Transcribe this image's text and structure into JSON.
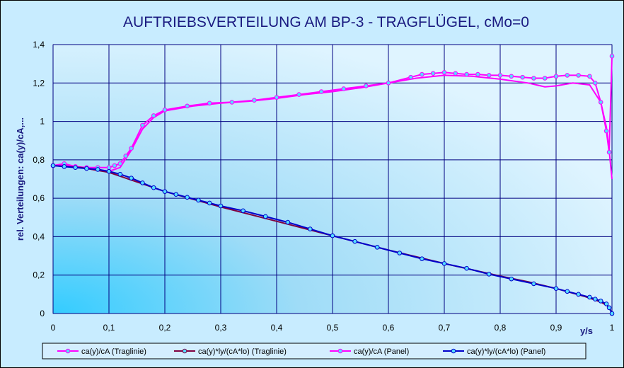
{
  "chart_data": {
    "type": "line",
    "title": "AUFTRIEBSVERTEILUNG AM BP-3 - TRAGFLÜGEL, cMo=0",
    "xlabel": "y/s",
    "ylabel": "rel. Verteilungen: ca(y)/cA,...",
    "xlim": [
      0,
      1
    ],
    "ylim": [
      0,
      1.4
    ],
    "xticks": [
      "0",
      "0,1",
      "0,2",
      "0,3",
      "0,4",
      "0,5",
      "0,6",
      "0,7",
      "0,8",
      "0,9",
      "1"
    ],
    "yticks": [
      "0",
      "0,2",
      "0,4",
      "0,6",
      "0,8",
      "1",
      "1,2",
      "1,4"
    ],
    "grid": true,
    "legend_position": "bottom",
    "series": [
      {
        "name": "ca(y)/cA (Traglinie)",
        "color": "#ff00ff",
        "marker": "none",
        "x": [
          0,
          0.02,
          0.05,
          0.08,
          0.1,
          0.12,
          0.14,
          0.16,
          0.18,
          0.2,
          0.25,
          0.3,
          0.35,
          0.4,
          0.45,
          0.5,
          0.55,
          0.6,
          0.65,
          0.7,
          0.75,
          0.8,
          0.85,
          0.88,
          0.9,
          0.93,
          0.96,
          0.98,
          0.99,
          0.995,
          1.0
        ],
        "y": [
          0.77,
          0.77,
          0.76,
          0.745,
          0.74,
          0.76,
          0.85,
          0.96,
          1.02,
          1.055,
          1.08,
          1.095,
          1.105,
          1.12,
          1.14,
          1.155,
          1.175,
          1.2,
          1.225,
          1.24,
          1.235,
          1.22,
          1.2,
          1.18,
          1.185,
          1.2,
          1.19,
          1.1,
          0.97,
          0.85,
          0.7
        ]
      },
      {
        "name": "ca(y)*ly/(cA*lo) (Traglinie)",
        "color": "#800040",
        "marker": "none",
        "x": [
          0,
          0.05,
          0.1,
          0.15,
          0.2,
          0.3,
          0.4,
          0.5,
          0.6,
          0.7,
          0.8,
          0.85,
          0.9,
          0.95,
          0.98,
          0.995,
          1.0
        ],
        "y": [
          0.77,
          0.76,
          0.735,
          0.685,
          0.635,
          0.555,
          0.48,
          0.405,
          0.33,
          0.26,
          0.195,
          0.165,
          0.13,
          0.09,
          0.06,
          0.035,
          0.0
        ]
      },
      {
        "name": "ca(y)/cA (Panel)",
        "color": "#ff00ff",
        "marker": "circle",
        "x": [
          0,
          0.02,
          0.04,
          0.06,
          0.08,
          0.1,
          0.11,
          0.12,
          0.13,
          0.14,
          0.16,
          0.18,
          0.2,
          0.24,
          0.28,
          0.32,
          0.36,
          0.4,
          0.44,
          0.48,
          0.52,
          0.56,
          0.6,
          0.64,
          0.66,
          0.68,
          0.7,
          0.72,
          0.74,
          0.76,
          0.78,
          0.8,
          0.82,
          0.84,
          0.86,
          0.88,
          0.9,
          0.92,
          0.94,
          0.96,
          0.97,
          0.98,
          0.99,
          0.995,
          1.0
        ],
        "y": [
          0.77,
          0.78,
          0.765,
          0.76,
          0.76,
          0.76,
          0.77,
          0.78,
          0.82,
          0.86,
          0.98,
          1.03,
          1.06,
          1.08,
          1.095,
          1.1,
          1.11,
          1.125,
          1.14,
          1.155,
          1.17,
          1.185,
          1.2,
          1.23,
          1.245,
          1.25,
          1.255,
          1.25,
          1.245,
          1.245,
          1.24,
          1.24,
          1.235,
          1.23,
          1.225,
          1.225,
          1.235,
          1.24,
          1.24,
          1.235,
          1.2,
          1.1,
          0.95,
          0.84,
          1.34
        ]
      },
      {
        "name": "ca(y)*ly/(cA*lo) (Panel)",
        "color": "#0000cc",
        "marker": "circle",
        "x": [
          0,
          0.02,
          0.04,
          0.06,
          0.08,
          0.1,
          0.12,
          0.14,
          0.16,
          0.18,
          0.2,
          0.22,
          0.24,
          0.26,
          0.28,
          0.3,
          0.34,
          0.38,
          0.42,
          0.46,
          0.5,
          0.54,
          0.58,
          0.62,
          0.66,
          0.7,
          0.74,
          0.78,
          0.82,
          0.86,
          0.9,
          0.92,
          0.94,
          0.96,
          0.97,
          0.98,
          0.99,
          0.995,
          1.0
        ],
        "y": [
          0.77,
          0.765,
          0.76,
          0.755,
          0.75,
          0.74,
          0.725,
          0.705,
          0.68,
          0.655,
          0.635,
          0.62,
          0.605,
          0.59,
          0.575,
          0.56,
          0.535,
          0.505,
          0.475,
          0.44,
          0.405,
          0.375,
          0.345,
          0.315,
          0.285,
          0.26,
          0.235,
          0.205,
          0.18,
          0.155,
          0.13,
          0.115,
          0.1,
          0.085,
          0.075,
          0.065,
          0.05,
          0.03,
          0.0
        ]
      }
    ]
  }
}
